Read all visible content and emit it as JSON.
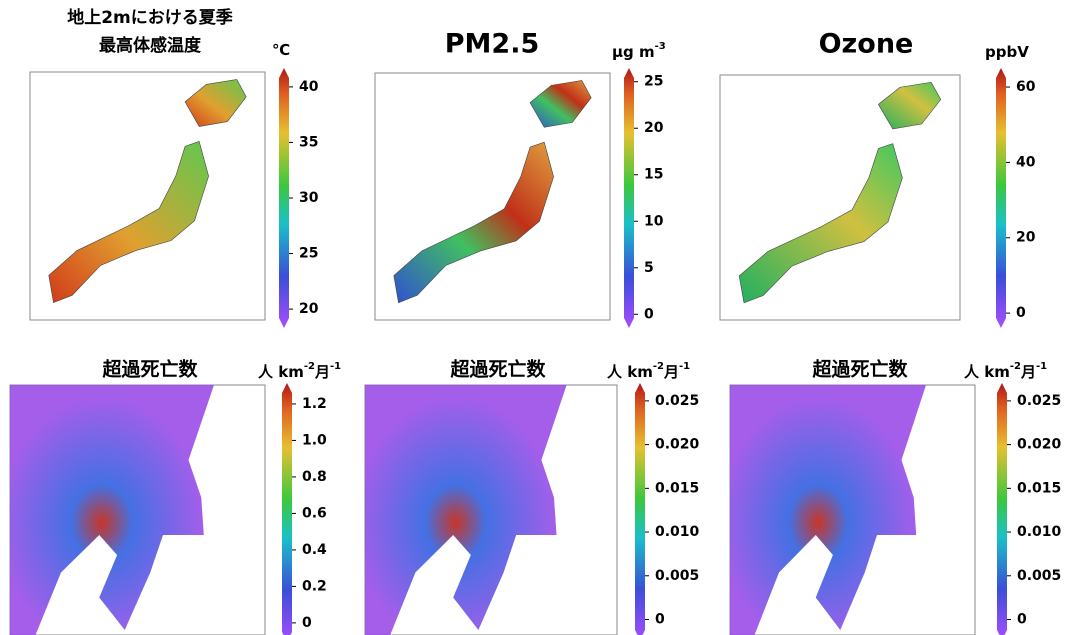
{
  "panels": [
    {
      "title": [
        "地上2mにおける夏季",
        "最高体感温度"
      ],
      "unit": [
        {
          "text": "℃"
        }
      ],
      "colorbar": {
        "lim": [
          19.2,
          40.8
        ],
        "ticks": [
          20,
          25,
          30,
          35,
          40
        ]
      }
    },
    {
      "title": [
        "PM2.5"
      ],
      "unit": [
        {
          "text": "μg m"
        },
        {
          "text": "-3",
          "sup": true
        }
      ],
      "colorbar": {
        "lim": [
          -0.4,
          25.4
        ],
        "ticks": [
          0,
          5,
          10,
          15,
          20,
          25
        ]
      }
    },
    {
      "title": [
        "Ozone"
      ],
      "unit": [
        {
          "text": "ppbV"
        }
      ],
      "colorbar": {
        "lim": [
          -1.3,
          62.4
        ],
        "ticks": [
          0,
          20,
          40,
          60
        ]
      }
    },
    {
      "title": [
        "超過死亡数"
      ],
      "unit": [
        {
          "text": "人 km"
        },
        {
          "text": "-2",
          "sup": true
        },
        {
          "text": "月"
        },
        {
          "text": "-1",
          "sup": true
        }
      ],
      "colorbar": {
        "lim": [
          -0.05,
          1.26
        ],
        "ticks": [
          0,
          0.2,
          0.4,
          0.6,
          0.8,
          {
            "value": 1,
            "label": "1.0"
          },
          1.2
        ]
      }
    },
    {
      "title": [
        "超過死亡数"
      ],
      "unit": [
        {
          "text": "人 km"
        },
        {
          "text": "-2",
          "sup": true
        },
        {
          "text": "月"
        },
        {
          "text": "-1",
          "sup": true
        }
      ],
      "colorbar": {
        "lim": [
          -0.0012,
          0.0259
        ],
        "ticks": [
          0,
          0.005,
          {
            "value": 0.01,
            "label": "0.010"
          },
          0.015,
          {
            "value": 0.02,
            "label": "0.020"
          },
          0.025
        ]
      }
    },
    {
      "title": [
        "超過死亡数"
      ],
      "unit": [
        {
          "text": "人 km"
        },
        {
          "text": "-2",
          "sup": true
        },
        {
          "text": "月"
        },
        {
          "text": "-1",
          "sup": true
        }
      ],
      "colorbar": {
        "lim": [
          -0.0012,
          0.0259
        ],
        "ticks": [
          0,
          0.005,
          {
            "value": 0.01,
            "label": "0.010"
          },
          0.015,
          {
            "value": 0.02,
            "label": "0.020"
          },
          0.025
        ]
      }
    }
  ]
}
